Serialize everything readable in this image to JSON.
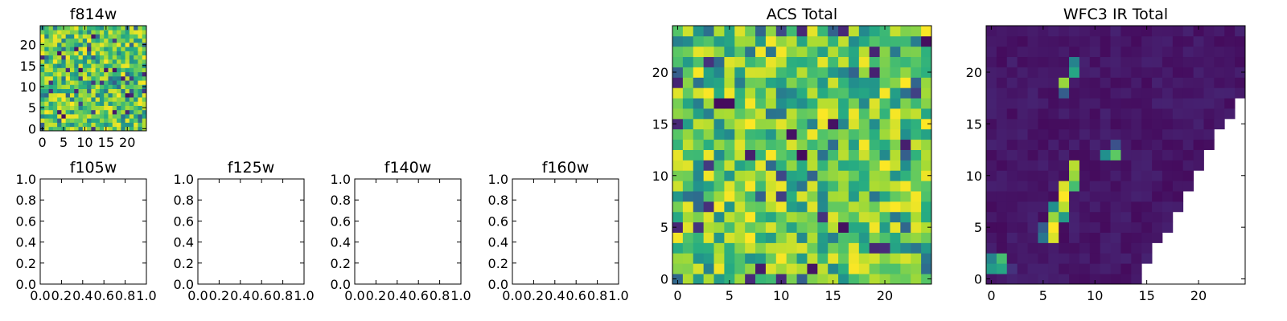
{
  "figure": {
    "background": "#ffffff"
  },
  "chart_data": [
    {
      "id": "f814w",
      "type": "heatmap",
      "title": "f814w",
      "grid_size": 25,
      "colormap": "viridis",
      "pattern": "noise",
      "seed": 814,
      "xlim": [
        -0.5,
        24.5
      ],
      "ylim": [
        -0.5,
        24.5
      ],
      "xticks": [
        0,
        5,
        10,
        15,
        20
      ],
      "xtick_labels": [
        "0",
        "5",
        "10",
        "15",
        "20"
      ],
      "yticks": [
        0,
        5,
        10,
        15,
        20
      ],
      "ytick_labels": [
        "0",
        "5",
        "10",
        "15",
        "20"
      ],
      "grid": false
    },
    {
      "id": "f105w",
      "type": "scatter",
      "title": "f105w",
      "values": [],
      "xlim": [
        0,
        1
      ],
      "ylim": [
        0,
        1
      ],
      "xticks": [
        0,
        0.2,
        0.4,
        0.6,
        0.8,
        1.0
      ],
      "xtick_labels": [
        "0.0",
        "0.2",
        "0.4",
        "0.6",
        "0.8",
        "1.0"
      ],
      "yticks": [
        0,
        0.2,
        0.4,
        0.6,
        0.8,
        1.0
      ],
      "ytick_labels": [
        "0.0",
        "0.2",
        "0.4",
        "0.6",
        "0.8",
        "1.0"
      ],
      "grid": false
    },
    {
      "id": "f125w",
      "type": "scatter",
      "title": "f125w",
      "values": [],
      "xlim": [
        0,
        1
      ],
      "ylim": [
        0,
        1
      ],
      "xticks": [
        0,
        0.2,
        0.4,
        0.6,
        0.8,
        1.0
      ],
      "xtick_labels": [
        "0.0",
        "0.2",
        "0.4",
        "0.6",
        "0.8",
        "1.0"
      ],
      "yticks": [
        0,
        0.2,
        0.4,
        0.6,
        0.8,
        1.0
      ],
      "ytick_labels": [
        "0.0",
        "0.2",
        "0.4",
        "0.6",
        "0.8",
        "1.0"
      ],
      "grid": false
    },
    {
      "id": "f140w",
      "type": "scatter",
      "title": "f140w",
      "values": [],
      "xlim": [
        0,
        1
      ],
      "ylim": [
        0,
        1
      ],
      "xticks": [
        0,
        0.2,
        0.4,
        0.6,
        0.8,
        1.0
      ],
      "xtick_labels": [
        "0.0",
        "0.2",
        "0.4",
        "0.6",
        "0.8",
        "1.0"
      ],
      "yticks": [
        0,
        0.2,
        0.4,
        0.6,
        0.8,
        1.0
      ],
      "ytick_labels": [
        "0.0",
        "0.2",
        "0.4",
        "0.6",
        "0.8",
        "1.0"
      ],
      "grid": false
    },
    {
      "id": "f160w",
      "type": "scatter",
      "title": "f160w",
      "values": [],
      "xlim": [
        0,
        1
      ],
      "ylim": [
        0,
        1
      ],
      "xticks": [
        0,
        0.2,
        0.4,
        0.6,
        0.8,
        1.0
      ],
      "xtick_labels": [
        "0.0",
        "0.2",
        "0.4",
        "0.6",
        "0.8",
        "1.0"
      ],
      "yticks": [
        0,
        0.2,
        0.4,
        0.6,
        0.8,
        1.0
      ],
      "ytick_labels": [
        "0.0",
        "0.2",
        "0.4",
        "0.6",
        "0.8",
        "1.0"
      ],
      "grid": false
    },
    {
      "id": "acs-total",
      "type": "heatmap",
      "title": "ACS Total",
      "grid_size": 25,
      "colormap": "viridis",
      "pattern": "noise",
      "seed": 1001,
      "xlim": [
        -0.5,
        24.5
      ],
      "ylim": [
        -0.5,
        24.5
      ],
      "xticks": [
        0,
        5,
        10,
        15,
        20
      ],
      "xtick_labels": [
        "0",
        "5",
        "10",
        "15",
        "20"
      ],
      "yticks": [
        0,
        5,
        10,
        15,
        20
      ],
      "ytick_labels": [
        "0",
        "5",
        "10",
        "15",
        "20"
      ],
      "grid": false
    },
    {
      "id": "wfc3-ir-total",
      "type": "heatmap",
      "title": "WFC3 IR Total",
      "grid_size": 25,
      "colormap": "viridis",
      "pattern": "sparse",
      "seed": 3003,
      "masked_region": "lower-right triangle",
      "mask_edge": [
        [
          14,
          -0.5
        ],
        [
          25,
          19.5
        ]
      ],
      "bright_cells": [
        {
          "x": 0,
          "y": 1,
          "v": 0.55
        },
        {
          "x": 0,
          "y": 2,
          "v": 0.45
        },
        {
          "x": 1,
          "y": 1,
          "v": 0.6
        },
        {
          "x": 1,
          "y": 2,
          "v": 0.7
        },
        {
          "x": 2,
          "y": 1,
          "v": 0.15
        },
        {
          "x": 5,
          "y": 4,
          "v": 0.4
        },
        {
          "x": 5,
          "y": 5,
          "v": 0.3
        },
        {
          "x": 6,
          "y": 4,
          "v": 0.95
        },
        {
          "x": 6,
          "y": 5,
          "v": 1.0
        },
        {
          "x": 6,
          "y": 6,
          "v": 0.85
        },
        {
          "x": 6,
          "y": 7,
          "v": 0.5
        },
        {
          "x": 7,
          "y": 6,
          "v": 0.55
        },
        {
          "x": 7,
          "y": 7,
          "v": 0.9
        },
        {
          "x": 7,
          "y": 8,
          "v": 1.0
        },
        {
          "x": 7,
          "y": 9,
          "v": 0.95
        },
        {
          "x": 8,
          "y": 9,
          "v": 0.7
        },
        {
          "x": 8,
          "y": 10,
          "v": 0.85
        },
        {
          "x": 8,
          "y": 11,
          "v": 0.9
        },
        {
          "x": 11,
          "y": 12,
          "v": 0.5
        },
        {
          "x": 12,
          "y": 12,
          "v": 0.75
        },
        {
          "x": 12,
          "y": 13,
          "v": 0.25
        },
        {
          "x": 7,
          "y": 19,
          "v": 0.85
        },
        {
          "x": 8,
          "y": 20,
          "v": 0.6
        },
        {
          "x": 8,
          "y": 21,
          "v": 0.45
        },
        {
          "x": 7,
          "y": 18,
          "v": 0.3
        }
      ],
      "xlim": [
        -0.5,
        24.5
      ],
      "ylim": [
        -0.5,
        24.5
      ],
      "xticks": [
        0,
        5,
        10,
        15,
        20
      ],
      "xtick_labels": [
        "0",
        "5",
        "10",
        "15",
        "20"
      ],
      "yticks": [
        0,
        5,
        10,
        15,
        20
      ],
      "ytick_labels": [
        "0",
        "5",
        "10",
        "15",
        "20"
      ],
      "grid": false
    }
  ]
}
